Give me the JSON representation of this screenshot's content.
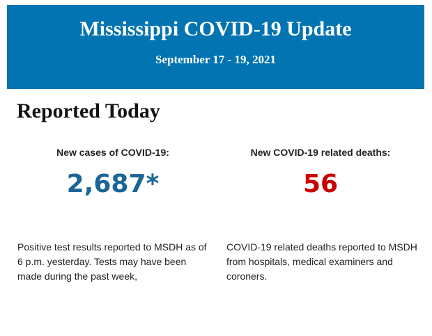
{
  "header": {
    "title": "Mississippi COVID-19 Update",
    "date_range": "September 17 - 19, 2021"
  },
  "section_title": "Reported Today",
  "cases": {
    "label": "New cases of COVID-19:",
    "value": "2,687*",
    "color": "#1a6596",
    "description": "Positive test results reported to MSDH as of 6 p.m. yesterday. Tests may have been made during the past week,"
  },
  "deaths": {
    "label": "New COVID-19 related deaths:",
    "value": "56",
    "color": "#c80000",
    "description": "COVID-19 related deaths reported to MSDH from hospitals, medical examiners and coroners."
  }
}
